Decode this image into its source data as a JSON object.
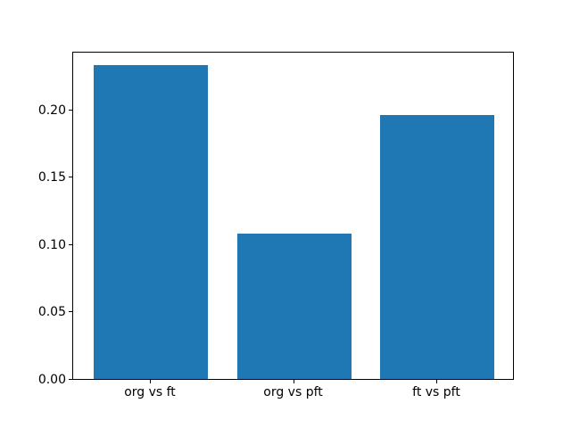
{
  "chart_data": {
    "type": "bar",
    "title": "",
    "xlabel": "",
    "ylabel": "",
    "categories": [
      "org vs ft",
      "org vs pft",
      "ft vs pft"
    ],
    "values": [
      0.233,
      0.108,
      0.196
    ],
    "yticks": [
      0.0,
      0.05,
      0.1,
      0.15,
      0.2
    ],
    "ytick_labels": [
      "0.00",
      "0.05",
      "0.10",
      "0.15",
      "0.20"
    ],
    "ylim": [
      0,
      0.2437
    ],
    "bar_color": "#1f77b4",
    "axis_color": "#000000",
    "grid": false,
    "legend": null,
    "background_color": "#ffffff"
  }
}
